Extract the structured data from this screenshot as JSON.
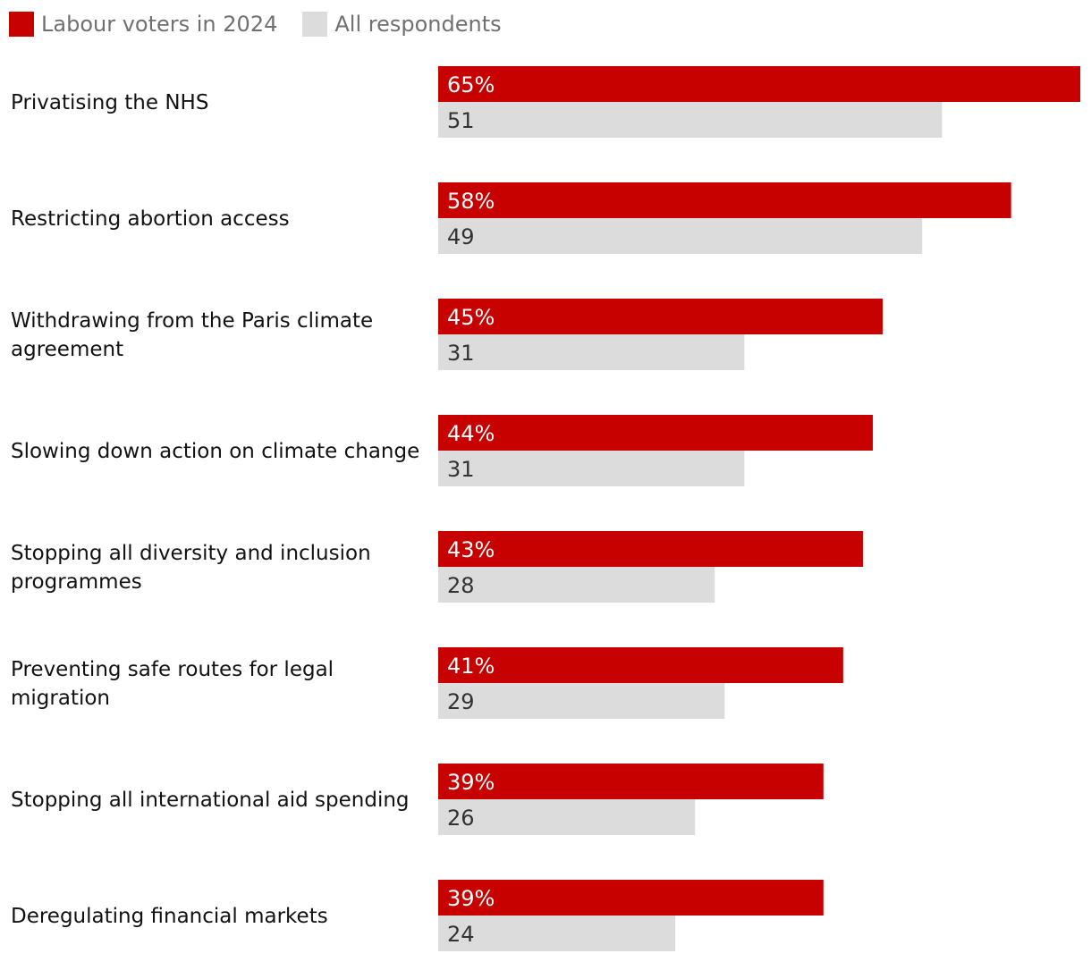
{
  "legend": {
    "labour_label": "Labour voters in 2024",
    "all_label": "All respondents"
  },
  "colors": {
    "labour": "#c70000",
    "all": "#dcdcdc",
    "labour_text": "#ffffff",
    "all_text": "#333333",
    "category_text": "#121212"
  },
  "chart_data": {
    "type": "bar",
    "orientation": "horizontal",
    "title": "",
    "xlabel": "",
    "ylabel": "",
    "xlim": [
      0,
      65
    ],
    "grid": false,
    "legend_position": "top-left",
    "categories": [
      [
        "Privatising the NHS"
      ],
      [
        "Restricting abortion access"
      ],
      [
        "Withdrawing from the Paris climate",
        "agreement"
      ],
      [
        "Slowing down action on climate change"
      ],
      [
        "Stopping all diversity and inclusion",
        "programmes"
      ],
      [
        "Preventing safe routes for legal",
        "migration"
      ],
      [
        "Stopping all international aid spending"
      ],
      [
        "Deregulating financial markets"
      ]
    ],
    "series": [
      {
        "name": "Labour voters in 2024",
        "values": [
          65,
          58,
          45,
          44,
          43,
          41,
          39,
          39
        ],
        "value_labels": [
          "65%",
          "58%",
          "45%",
          "44%",
          "43%",
          "41%",
          "39%",
          "39%"
        ]
      },
      {
        "name": "All respondents",
        "values": [
          51,
          49,
          31,
          31,
          28,
          29,
          26,
          24
        ],
        "value_labels": [
          "51",
          "49",
          "31",
          "31",
          "28",
          "29",
          "26",
          "24"
        ]
      }
    ]
  }
}
